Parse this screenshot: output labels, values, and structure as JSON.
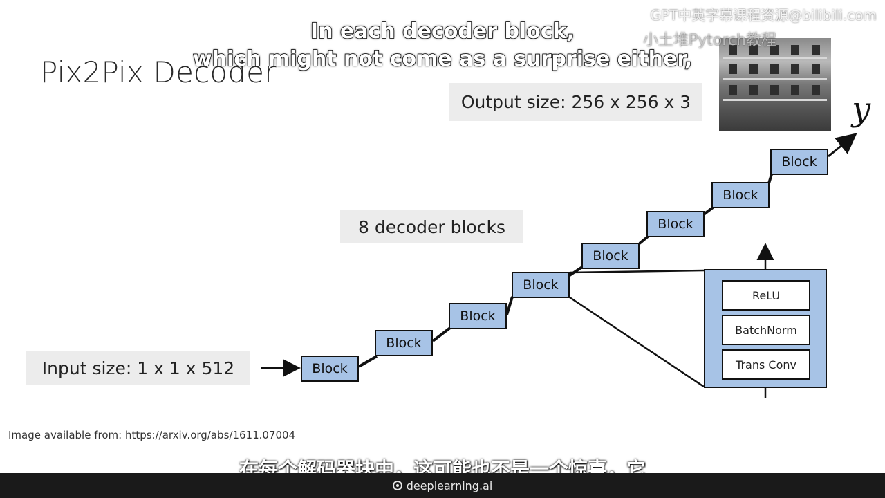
{
  "slide": {
    "title": "Pix2Pix Decoder",
    "input_label": "Input size: 1 x 1 x 512",
    "output_label": "Output size: 256 x 256 x 3",
    "blocks_label": "8 decoder blocks",
    "block_label": "Block",
    "layers": [
      "ReLU",
      "BatchNorm",
      "Trans Conv"
    ],
    "output_symbol": "y",
    "credit": "Image available from: https://arxiv.org/abs/1611.07004"
  },
  "subtitles": {
    "english_line1": "In each decoder block,",
    "english_line2": "which might not come as a surprise either,",
    "chinese": "在每个解码器块中，这可能也不是一个惊喜，它"
  },
  "watermark": {
    "text": "GPT中英字幕课程资源@bilibili.com",
    "text2": "小土堆Pytorch教程"
  },
  "footer": {
    "brand": "deeplearning.ai"
  },
  "colors": {
    "block_fill": "#a7c3e6",
    "label_bg": "#ececec"
  }
}
